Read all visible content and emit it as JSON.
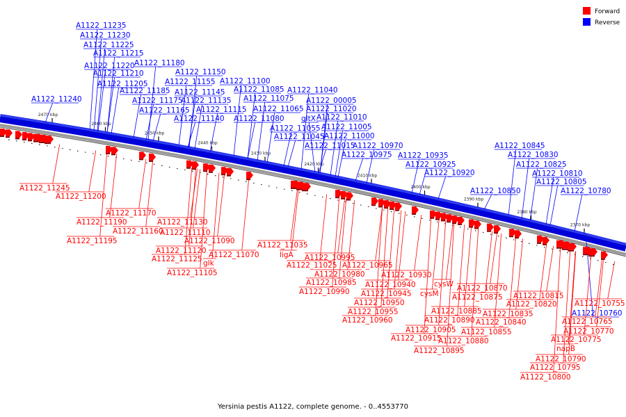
{
  "caption": "Yersinia pestis A1122, complete genome. - 0..4553770",
  "legend": {
    "forward": {
      "label": "Forward",
      "color": "#ff0000"
    },
    "reverse": {
      "label": "Reverse",
      "color": "#0000ff"
    }
  },
  "colors": {
    "forward": "#ff0000",
    "reverse": "#0000ff",
    "backbone": "#0000ff"
  },
  "axis_ticks": [
    {
      "kbp": 2470,
      "label": "2470 kbp"
    },
    {
      "kbp": 2460,
      "label": "2460 kbp"
    },
    {
      "kbp": 2450,
      "label": "2450 kbp"
    },
    {
      "kbp": 2440,
      "label": "2440 kbp"
    },
    {
      "kbp": 2430,
      "label": "2430 kbp"
    },
    {
      "kbp": 2420,
      "label": "2420 kbp"
    },
    {
      "kbp": 2410,
      "label": "2410 kbp"
    },
    {
      "kbp": 2400,
      "label": "2400 kbp"
    },
    {
      "kbp": 2390,
      "label": "2390 kbp"
    },
    {
      "kbp": 2380,
      "label": "2380 kbp"
    },
    {
      "kbp": 2370,
      "label": "2370 kbp"
    }
  ],
  "reverse_genes": [
    "A1122_11235",
    "A1122_11230",
    "A1122_11225",
    "A1122_11215",
    "A1122_11220",
    "A1122_11210",
    "A1122_11205",
    "A1122_11240",
    "A1122_11180",
    "A1122_11185",
    "A1122_11175",
    "A1122_11165",
    "A1122_11150",
    "A1122_11155",
    "A1122_11145",
    "A1122_11135",
    "A1122_11115",
    "A1122_11140",
    "A1122_11100",
    "A1122_11085",
    "A1122_11075",
    "A1122_11065",
    "A1122_11080",
    "gltX",
    "A1122_11040",
    "A1122_00005",
    "A1122_11020",
    "A1122_11010",
    "A1122_11005",
    "A1122_11055",
    "A1122_11000",
    "A1122_11045",
    "A1122_11015",
    "A1122_10970",
    "A1122_10975",
    "A1122_10935",
    "A1122_10925",
    "A1122_10920",
    "A1122_10845",
    "A1122_10830",
    "A1122_10825",
    "A1122_10810",
    "A1122_10850",
    "A1122_10805",
    "A1122_10780",
    "A1122_10760"
  ],
  "forward_genes": [
    "A1122_11245",
    "A1122_11200",
    "A1122_11170",
    "A1122_11190",
    "A1122_11160",
    "A1122_11195",
    "A1122_11130",
    "A1122_11110",
    "A1122_11090",
    "A1122_11120",
    "A1122_11070",
    "A1122_11125",
    "glk",
    "A1122_11105",
    "A1122_11035",
    "ligA",
    "A1122_11025",
    "A1122_10995",
    "A1122_10965",
    "A1122_10980",
    "A1122_10985",
    "A1122_10990",
    "A1122_10930",
    "A1122_10940",
    "A1122_10945",
    "cysW",
    "cysM",
    "A1122_10950",
    "A1122_10955",
    "A1122_10960",
    "A1122_10870",
    "A1122_10875",
    "A1122_10885",
    "A1122_10890",
    "A1122_10905",
    "A1122_10915",
    "A1122_10880",
    "A1122_10895",
    "A1122_10840",
    "A1122_10855",
    "A1122_10835",
    "A1122_10815",
    "A1122_10820",
    "A1122_10755",
    "A1122_10765",
    "A1122_10770",
    "A1122_10775",
    "napB",
    "A1122_10790",
    "A1122_10795",
    "A1122_10800"
  ]
}
